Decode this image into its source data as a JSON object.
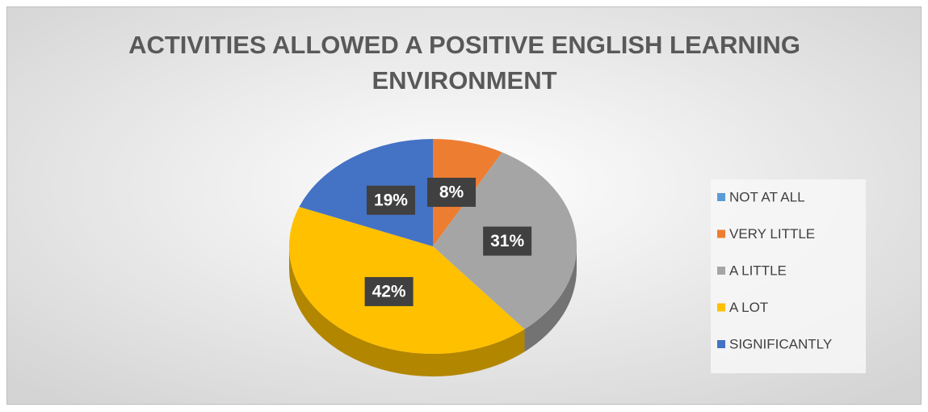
{
  "chart_data": {
    "type": "pie",
    "title": "ACTIVITIES ALLOWED A POSITIVE ENGLISH LEARNING ENVIRONMENT",
    "categories": [
      "NOT AT ALL",
      "VERY LITTLE",
      "A LITTLE",
      "A LOT",
      "SIGNIFICANTLY"
    ],
    "values": [
      0,
      8,
      31,
      42,
      19
    ],
    "value_labels": [
      null,
      "8%",
      "31%",
      "42%",
      "19%"
    ],
    "colors": [
      "#5b9bd5",
      "#ed7d31",
      "#a5a5a5",
      "#ffc000",
      "#4472c4"
    ],
    "legend": "right"
  }
}
